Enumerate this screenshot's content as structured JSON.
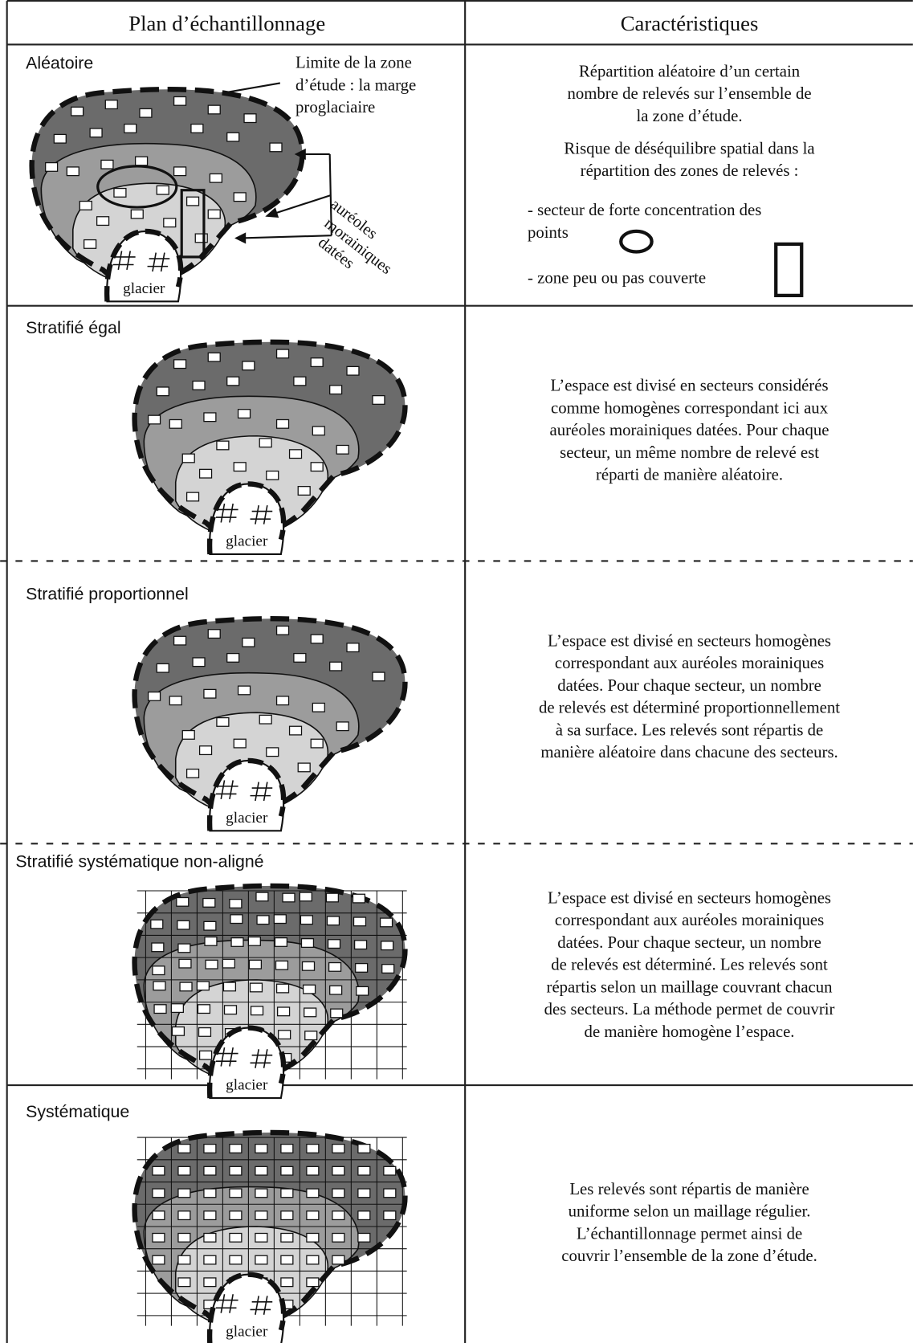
{
  "table": {
    "headers": [
      "Plan d’échantillonnage",
      "Caractéristiques"
    ],
    "rows": [
      {
        "name": "Aléatoire",
        "limit_label": [
          "Limite de la zone",
          "d’étude : la marge",
          "proglaciaire"
        ],
        "aureoles_label": [
          "auréoles",
          "morainiques",
          "datées"
        ],
        "glacier_label": "glacier",
        "description": [
          "Répartition aléatoire d’un certain",
          "nombre de relevés sur l’ensemble de",
          "la zone d’étude.",
          "Risque de déséquilibre spatial dans la",
          "répartition des zones de relevés :",
          "- secteur de forte concentration des",
          "points",
          "- zone peu ou pas couverte"
        ]
      },
      {
        "name": "Stratifié égal",
        "glacier_label": "glacier",
        "description": [
          "L’espace est divisé en secteurs considérés",
          "comme homogènes correspondant ici aux",
          "auréoles morainiques datées. Pour chaque",
          "secteur, un même nombre de relevé est",
          "réparti de manière aléatoire."
        ]
      },
      {
        "name": "Stratifié proportionnel",
        "glacier_label": "glacier",
        "description": [
          "L’espace est divisé en secteurs homogènes",
          "correspondant aux auréoles morainiques",
          "datées. Pour chaque secteur, un nombre",
          "de relevés est déterminé proportionnellement",
          "à sa surface. Les relevés sont répartis de",
          "manière aléatoire dans chacune des secteurs."
        ]
      },
      {
        "name": "Stratifié systématique non-aligné",
        "glacier_label": "glacier",
        "description": [
          "L’espace est divisé en secteurs homogènes",
          "correspondant aux auréoles morainiques",
          "datées. Pour chaque secteur, un nombre",
          "de relevés est déterminé. Les relevés sont",
          "répartis selon un maillage couvrant chacun",
          "des secteurs. La méthode permet de couvrir",
          "de manière homogène l’espace."
        ]
      },
      {
        "name": "Systématique",
        "glacier_label": "glacier",
        "description": [
          "Les relevés sont répartis de manière",
          "uniforme selon un maillage régulier.",
          "L’échantillonnage permet ainsi de",
          "couvrir l’ensemble de la zone d’étude."
        ]
      }
    ]
  }
}
